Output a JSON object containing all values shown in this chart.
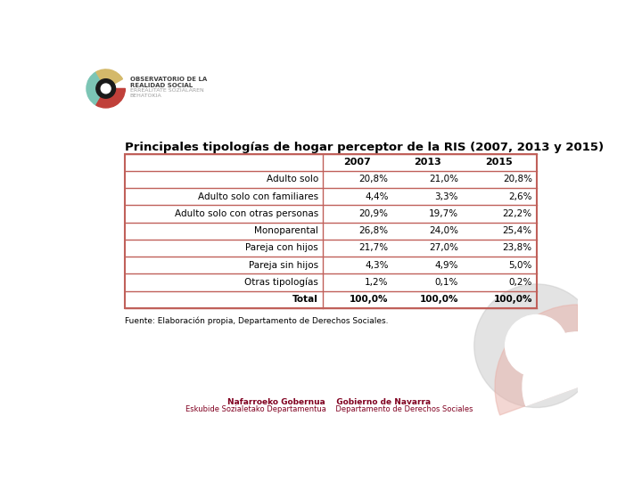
{
  "title": "Principales tipologías de hogar perceptor de la RIS (2007, 2013 y 2015)",
  "source": "Fuente: Elaboración propia, Departamento de Derechos Sociales.",
  "columns": [
    "",
    "2007",
    "2013",
    "2015"
  ],
  "rows": [
    [
      "Adulto solo",
      "20,8%",
      "21,0%",
      "20,8%"
    ],
    [
      "Adulto solo con familiares",
      "4,4%",
      "3,3%",
      "2,6%"
    ],
    [
      "Adulto solo con otras personas",
      "20,9%",
      "19,7%",
      "22,2%"
    ],
    [
      "Monoparental",
      "26,8%",
      "24,0%",
      "25,4%"
    ],
    [
      "Pareja con hijos",
      "21,7%",
      "27,0%",
      "23,8%"
    ],
    [
      "Pareja sin hijos",
      "4,3%",
      "4,9%",
      "5,0%"
    ],
    [
      "Otras tipologías",
      "1,2%",
      "0,1%",
      "0,2%"
    ],
    [
      "Total",
      "100,0%",
      "100,0%",
      "100,0%"
    ]
  ],
  "border_color": "#c0605a",
  "text_color": "#000000",
  "title_fontsize": 9.5,
  "cell_fontsize": 7.5,
  "source_fontsize": 6.5,
  "background_color": "#ffffff",
  "logo_text1": "OBSERVATORIO DE LA",
  "logo_text2": "REALIDAD SOCIAL",
  "logo_text3": "ERREALITATE SOZIALAREN",
  "logo_text4": "BEHATOKIA",
  "footer_text1": "Nafarroeko Gobernua    Gobierno de Navarra",
  "footer_text2": "Eskubide Sozialetako Departamentua    Departamento de Derechos Sociales",
  "header_col_teal": "#7cc5b5",
  "header_col_gold": "#d4b96a",
  "header_col_red": "#c0403a",
  "header_black": "#1a1a1a",
  "deco_gray": "#c8c8c8",
  "deco_pink": "#e8b0a8"
}
